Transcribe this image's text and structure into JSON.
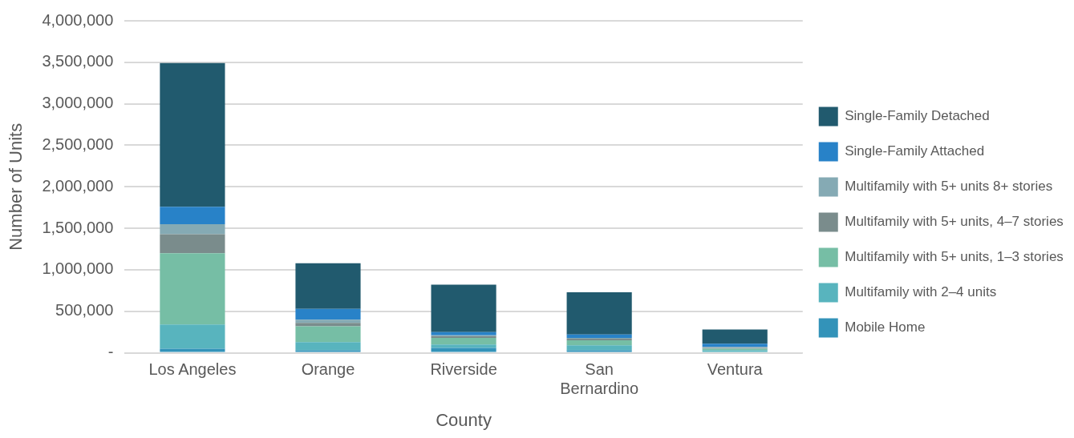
{
  "chart_data": {
    "type": "bar",
    "stacked": true,
    "xlabel": "County",
    "ylabel": "Number of Units",
    "categories": [
      "Los Angeles",
      "Orange",
      "Riverside",
      "San Bernardino",
      "Ventura"
    ],
    "series": [
      {
        "name": "Mobile Home",
        "color": "#3393b9",
        "values": [
          50000,
          30000,
          60000,
          30000,
          10000
        ]
      },
      {
        "name": "Multifamily with 2–4 units",
        "color": "#58b4be",
        "values": [
          290000,
          100000,
          40000,
          60000,
          20000
        ]
      },
      {
        "name": "Multifamily with 5+ units, 1–3 stories",
        "color": "#76bea5",
        "values": [
          860000,
          190000,
          80000,
          60000,
          20000
        ]
      },
      {
        "name": "Multifamily with 5+ units, 4–7 stories",
        "color": "#7a8c8c",
        "values": [
          230000,
          40000,
          20000,
          20000,
          10000
        ]
      },
      {
        "name": "Multifamily with 5+ units 8+ stories",
        "color": "#85aab4",
        "values": [
          120000,
          40000,
          10000,
          10000,
          10000
        ]
      },
      {
        "name": "Single-Family Attached",
        "color": "#2882c8",
        "values": [
          210000,
          130000,
          40000,
          40000,
          40000
        ]
      },
      {
        "name": "Single-Family Detached",
        "color": "#215a6e",
        "values": [
          1730000,
          550000,
          570000,
          510000,
          170000
        ]
      }
    ],
    "ylim": [
      0,
      4000000
    ],
    "yticks": [
      {
        "value": 0,
        "label": "-"
      },
      {
        "value": 500000,
        "label": "500,000"
      },
      {
        "value": 1000000,
        "label": "1,000,000"
      },
      {
        "value": 1500000,
        "label": "1,500,000"
      },
      {
        "value": 2000000,
        "label": "2,000,000"
      },
      {
        "value": 2500000,
        "label": "2,500,000"
      },
      {
        "value": 3000000,
        "label": "3,000,000"
      },
      {
        "value": 3500000,
        "label": "3,500,000"
      },
      {
        "value": 4000000,
        "label": "4,000,000"
      }
    ],
    "grid": "y",
    "legend": "right"
  }
}
